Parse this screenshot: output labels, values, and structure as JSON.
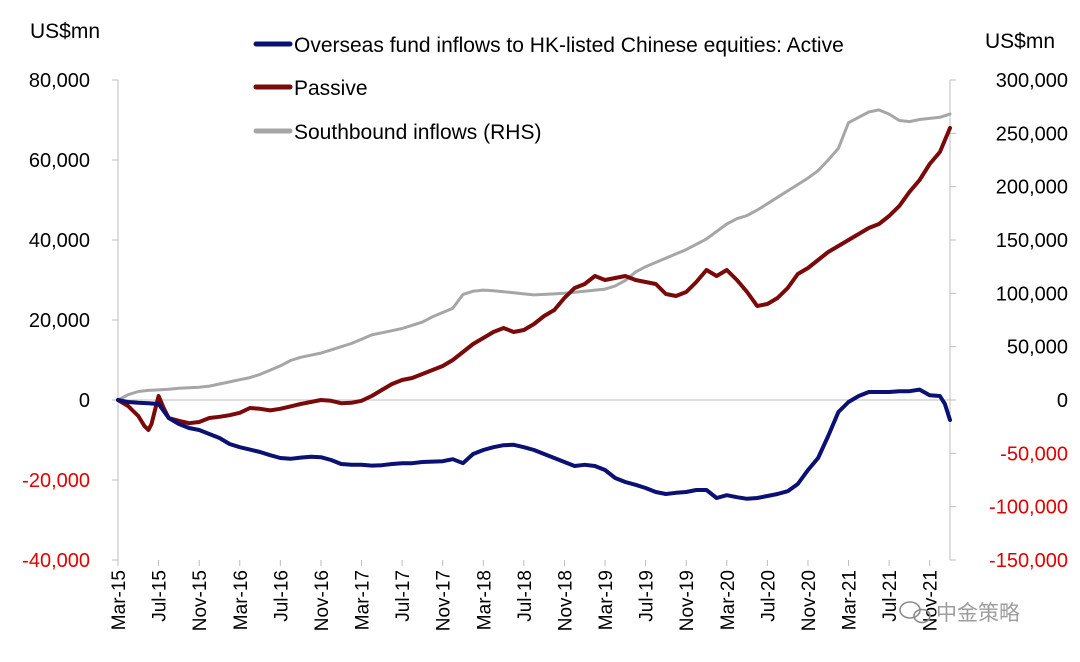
{
  "chart_data": {
    "type": "line",
    "left_axis": {
      "unit": "US$mn",
      "ticks": [
        80000,
        60000,
        40000,
        20000,
        0,
        -20000,
        -40000
      ],
      "tick_labels": [
        "80,000",
        "60,000",
        "40,000",
        "20,000",
        "0",
        "-20,000",
        "-40,000"
      ],
      "ylim": [
        -40000,
        80000
      ]
    },
    "right_axis": {
      "unit": "US$mn",
      "ticks": [
        300000,
        250000,
        200000,
        150000,
        100000,
        50000,
        0,
        -50000,
        -100000,
        -150000
      ],
      "tick_labels": [
        "300,000",
        "250,000",
        "200,000",
        "150,000",
        "100,000",
        "50,000",
        "0",
        "-50,000",
        "-100,000",
        "-150,000"
      ],
      "ylim": [
        -150000,
        300000
      ]
    },
    "x_axis": {
      "xlim": [
        0,
        82
      ],
      "tick_labels": [
        "Mar-15",
        "Jul-15",
        "Nov-15",
        "Mar-16",
        "Jul-16",
        "Nov-16",
        "Mar-17",
        "Jul-17",
        "Nov-17",
        "Mar-18",
        "Jul-18",
        "Nov-18",
        "Mar-19",
        "Jul-19",
        "Nov-19",
        "Mar-20",
        "Jul-20",
        "Nov-20",
        "Mar-21",
        "Jul-21",
        "Nov-21"
      ]
    },
    "series": [
      {
        "name": "Overseas fund inflows to HK-listed Chinese equities: Active",
        "axis": "left",
        "color": "#0a1172",
        "points": [
          [
            0,
            0
          ],
          [
            1,
            -500
          ],
          [
            2,
            -700
          ],
          [
            3,
            -800
          ],
          [
            4,
            -1000
          ],
          [
            5,
            -4500
          ],
          [
            6,
            -6000
          ],
          [
            7,
            -7000
          ],
          [
            8,
            -7500
          ],
          [
            9,
            -8500
          ],
          [
            10,
            -9500
          ],
          [
            11,
            -11000
          ],
          [
            12,
            -11800
          ],
          [
            13,
            -12400
          ],
          [
            14,
            -13000
          ],
          [
            15,
            -13800
          ],
          [
            16,
            -14500
          ],
          [
            17,
            -14700
          ],
          [
            18,
            -14400
          ],
          [
            19,
            -14200
          ],
          [
            20,
            -14300
          ],
          [
            21,
            -15000
          ],
          [
            22,
            -16000
          ],
          [
            23,
            -16200
          ],
          [
            24,
            -16200
          ],
          [
            25,
            -16400
          ],
          [
            26,
            -16300
          ],
          [
            27,
            -16000
          ],
          [
            28,
            -15800
          ],
          [
            29,
            -15800
          ],
          [
            30,
            -15500
          ],
          [
            31,
            -15400
          ],
          [
            32,
            -15300
          ],
          [
            33,
            -14800
          ],
          [
            34,
            -15800
          ],
          [
            35,
            -13500
          ],
          [
            36,
            -12500
          ],
          [
            37,
            -11800
          ],
          [
            38,
            -11300
          ],
          [
            39,
            -11200
          ],
          [
            40,
            -11800
          ],
          [
            41,
            -12500
          ],
          [
            42,
            -13500
          ],
          [
            43,
            -14500
          ],
          [
            44,
            -15500
          ],
          [
            45,
            -16500
          ],
          [
            46,
            -16200
          ],
          [
            47,
            -16500
          ],
          [
            48,
            -17500
          ],
          [
            49,
            -19500
          ],
          [
            50,
            -20500
          ],
          [
            51,
            -21200
          ],
          [
            52,
            -22000
          ],
          [
            53,
            -23000
          ],
          [
            54,
            -23500
          ],
          [
            55,
            -23200
          ],
          [
            56,
            -23000
          ],
          [
            57,
            -22500
          ],
          [
            58,
            -22500
          ],
          [
            59,
            -24500
          ],
          [
            60,
            -23800
          ],
          [
            61,
            -24300
          ],
          [
            62,
            -24700
          ],
          [
            63,
            -24500
          ],
          [
            64,
            -24000
          ],
          [
            65,
            -23500
          ],
          [
            66,
            -22800
          ],
          [
            67,
            -21000
          ],
          [
            68,
            -17500
          ],
          [
            69,
            -14500
          ],
          [
            70,
            -9000
          ],
          [
            71,
            -3000
          ],
          [
            72,
            -500
          ],
          [
            73,
            1000
          ],
          [
            74,
            2000
          ],
          [
            75,
            2000
          ],
          [
            76,
            2000
          ],
          [
            77,
            2200
          ],
          [
            78,
            2200
          ],
          [
            79,
            2600
          ],
          [
            80,
            1200
          ],
          [
            81,
            1000
          ],
          [
            81.5,
            -1000
          ],
          [
            82,
            -5000
          ]
        ]
      },
      {
        "name": "Passive",
        "axis": "left",
        "color": "#7a0a0a",
        "points": [
          [
            0,
            0
          ],
          [
            1,
            -1500
          ],
          [
            2,
            -4000
          ],
          [
            2.6,
            -6500
          ],
          [
            3,
            -7500
          ],
          [
            3.3,
            -6000
          ],
          [
            3.6,
            -3000
          ],
          [
            4,
            1000
          ],
          [
            4.5,
            -2000
          ],
          [
            5,
            -4500
          ],
          [
            6,
            -5200
          ],
          [
            7,
            -5800
          ],
          [
            8,
            -5500
          ],
          [
            9,
            -4500
          ],
          [
            10,
            -4200
          ],
          [
            11,
            -3800
          ],
          [
            12,
            -3200
          ],
          [
            13,
            -2000
          ],
          [
            14,
            -2200
          ],
          [
            15,
            -2600
          ],
          [
            16,
            -2200
          ],
          [
            17,
            -1600
          ],
          [
            18,
            -1000
          ],
          [
            19,
            -500
          ],
          [
            20,
            0
          ],
          [
            21,
            -200
          ],
          [
            22,
            -800
          ],
          [
            23,
            -700
          ],
          [
            24,
            -200
          ],
          [
            25,
            1000
          ],
          [
            26,
            2500
          ],
          [
            27,
            4000
          ],
          [
            28,
            5000
          ],
          [
            29,
            5500
          ],
          [
            30,
            6500
          ],
          [
            31,
            7500
          ],
          [
            32,
            8500
          ],
          [
            33,
            10000
          ],
          [
            34,
            12000
          ],
          [
            35,
            14000
          ],
          [
            36,
            15500
          ],
          [
            37,
            17000
          ],
          [
            38,
            18000
          ],
          [
            39,
            17000
          ],
          [
            40,
            17500
          ],
          [
            41,
            19000
          ],
          [
            42,
            21000
          ],
          [
            43,
            22500
          ],
          [
            44,
            25500
          ],
          [
            45,
            28000
          ],
          [
            46,
            29000
          ],
          [
            47,
            31000
          ],
          [
            48,
            30000
          ],
          [
            49,
            30500
          ],
          [
            50,
            31000
          ],
          [
            51,
            30000
          ],
          [
            52,
            29500
          ],
          [
            53,
            29000
          ],
          [
            54,
            26500
          ],
          [
            55,
            26000
          ],
          [
            56,
            27000
          ],
          [
            57,
            29500
          ],
          [
            58,
            32500
          ],
          [
            59,
            31000
          ],
          [
            60,
            32500
          ],
          [
            61,
            30000
          ],
          [
            62,
            27000
          ],
          [
            63,
            23500
          ],
          [
            64,
            24000
          ],
          [
            65,
            25500
          ],
          [
            66,
            28000
          ],
          [
            67,
            31500
          ],
          [
            68,
            33000
          ],
          [
            69,
            35000
          ],
          [
            70,
            37000
          ],
          [
            71,
            38500
          ],
          [
            72,
            40000
          ],
          [
            73,
            41500
          ],
          [
            74,
            43000
          ],
          [
            75,
            44000
          ],
          [
            76,
            46000
          ],
          [
            77,
            48500
          ],
          [
            78,
            52000
          ],
          [
            79,
            55000
          ],
          [
            80,
            59000
          ],
          [
            81,
            62000
          ],
          [
            82,
            68000
          ]
        ]
      },
      {
        "name": "Southbound inflows (RHS)",
        "axis": "right",
        "color": "#a6a6a6",
        "points": [
          [
            0,
            0
          ],
          [
            1,
            5000
          ],
          [
            2,
            8000
          ],
          [
            3,
            9000
          ],
          [
            4,
            9500
          ],
          [
            5,
            10000
          ],
          [
            6,
            11000
          ],
          [
            7,
            11500
          ],
          [
            8,
            12000
          ],
          [
            9,
            13000
          ],
          [
            10,
            15000
          ],
          [
            11,
            17000
          ],
          [
            12,
            19000
          ],
          [
            13,
            21000
          ],
          [
            14,
            24000
          ],
          [
            15,
            28000
          ],
          [
            16,
            32000
          ],
          [
            17,
            37000
          ],
          [
            18,
            40000
          ],
          [
            19,
            42000
          ],
          [
            20,
            44000
          ],
          [
            21,
            47000
          ],
          [
            22,
            50000
          ],
          [
            23,
            53000
          ],
          [
            24,
            57000
          ],
          [
            25,
            61000
          ],
          [
            26,
            63000
          ],
          [
            27,
            65000
          ],
          [
            28,
            67000
          ],
          [
            29,
            70000
          ],
          [
            30,
            73000
          ],
          [
            31,
            78000
          ],
          [
            32,
            82000
          ],
          [
            33,
            86000
          ],
          [
            34,
            99000
          ],
          [
            35,
            102000
          ],
          [
            36,
            103000
          ],
          [
            37,
            102500
          ],
          [
            38,
            101500
          ],
          [
            39,
            100500
          ],
          [
            40,
            99500
          ],
          [
            41,
            98500
          ],
          [
            42,
            99000
          ],
          [
            43,
            99500
          ],
          [
            44,
            100000
          ],
          [
            45,
            101000
          ],
          [
            46,
            102000
          ],
          [
            47,
            103000
          ],
          [
            48,
            104000
          ],
          [
            49,
            107000
          ],
          [
            50,
            112000
          ],
          [
            51,
            120000
          ],
          [
            52,
            125000
          ],
          [
            53,
            129000
          ],
          [
            54,
            133000
          ],
          [
            55,
            137000
          ],
          [
            56,
            141000
          ],
          [
            57,
            146000
          ],
          [
            58,
            151000
          ],
          [
            59,
            158000
          ],
          [
            60,
            165000
          ],
          [
            61,
            170000
          ],
          [
            62,
            173000
          ],
          [
            63,
            178000
          ],
          [
            64,
            184000
          ],
          [
            65,
            190000
          ],
          [
            66,
            196000
          ],
          [
            67,
            202000
          ],
          [
            68,
            208000
          ],
          [
            69,
            215000
          ],
          [
            70,
            225000
          ],
          [
            71,
            236000
          ],
          [
            72,
            260000
          ],
          [
            73,
            265000
          ],
          [
            74,
            270000
          ],
          [
            75,
            272000
          ],
          [
            76,
            268000
          ],
          [
            77,
            262000
          ],
          [
            78,
            261000
          ],
          [
            79,
            263000
          ],
          [
            80,
            264000
          ],
          [
            81,
            265000
          ],
          [
            82,
            268000
          ]
        ]
      }
    ],
    "legend": {
      "placement": "top-center",
      "entries": [
        "Overseas fund inflows to HK-listed Chinese equities: Active",
        "Passive",
        "Southbound inflows (RHS)"
      ]
    },
    "grid": false
  },
  "watermark": {
    "text": "中金策略"
  }
}
